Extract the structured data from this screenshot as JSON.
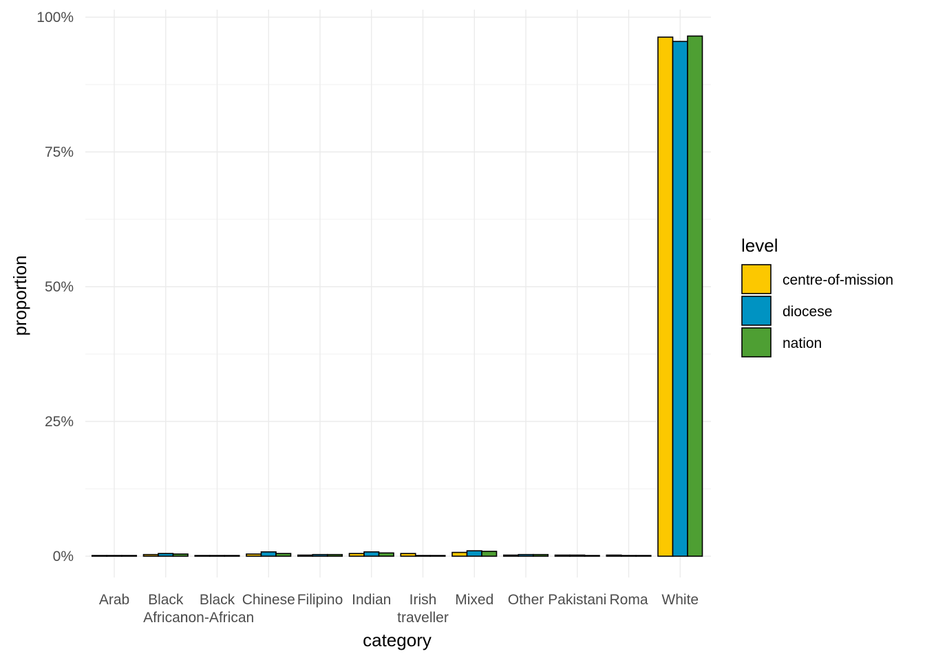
{
  "chart_data": {
    "type": "bar",
    "title": "",
    "xlabel": "category",
    "ylabel": "proportion",
    "ylim": [
      0,
      1
    ],
    "y_ticks": [
      "0%",
      "25%",
      "50%",
      "75%",
      "100%"
    ],
    "y_tick_values": [
      0,
      0.25,
      0.5,
      0.75,
      1.0
    ],
    "grid": true,
    "categories": [
      [
        "Arab"
      ],
      [
        "Black",
        "African"
      ],
      [
        "Black",
        "non-African"
      ],
      [
        "Chinese"
      ],
      [
        "Filipino"
      ],
      [
        "Indian"
      ],
      [
        "Irish",
        "traveller"
      ],
      [
        "Mixed"
      ],
      [
        "Other"
      ],
      [
        "Pakistani"
      ],
      [
        "Roma"
      ],
      [
        "White"
      ]
    ],
    "legend": {
      "title": "level",
      "position": "right"
    },
    "series": [
      {
        "name": "centre-of-mission",
        "color": "#FCC800",
        "values": [
          0.001,
          0.003,
          0.001,
          0.004,
          0.002,
          0.005,
          0.005,
          0.007,
          0.002,
          0.002,
          0.002,
          0.963
        ]
      },
      {
        "name": "diocese",
        "color": "#0093C2",
        "values": [
          0.001,
          0.005,
          0.001,
          0.008,
          0.003,
          0.008,
          0.001,
          0.01,
          0.003,
          0.002,
          0.001,
          0.955
        ]
      },
      {
        "name": "nation",
        "color": "#4E9F33",
        "values": [
          0.001,
          0.004,
          0.001,
          0.005,
          0.003,
          0.006,
          0.001,
          0.009,
          0.003,
          0.001,
          0.001,
          0.965
        ]
      }
    ]
  }
}
